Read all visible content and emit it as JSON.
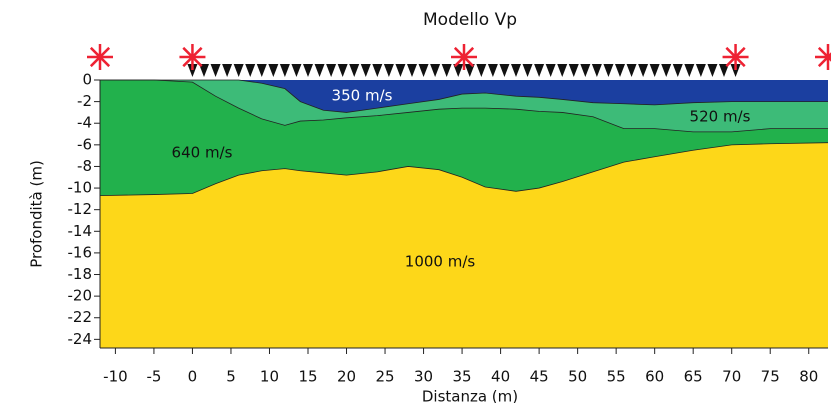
{
  "chart_data": {
    "type": "layers",
    "title": "Modello Vp",
    "x_label": "Distanza (m)",
    "y_label": "Profondità (m)",
    "xlim": [
      -12,
      82.5
    ],
    "ylim": [
      -24.8,
      0
    ],
    "xticks": [
      -10,
      -5,
      0,
      5,
      10,
      15,
      20,
      25,
      30,
      35,
      40,
      45,
      50,
      55,
      60,
      65,
      70,
      75,
      80
    ],
    "yticks": [
      0,
      -2,
      -4,
      -6,
      -8,
      -10,
      -12,
      -14,
      -16,
      -18,
      -20,
      -22,
      -24
    ],
    "x": [
      -12,
      -5,
      0,
      3,
      6,
      9,
      12,
      14,
      17,
      20,
      24,
      28,
      32,
      35,
      38,
      42,
      45,
      48,
      52,
      56,
      60,
      65,
      70,
      75,
      82.5
    ],
    "boundaries": [
      [
        0,
        0,
        0,
        0,
        0,
        -0.3,
        -0.8,
        -2,
        -2.8,
        -3,
        -2.6,
        -2.2,
        -1.8,
        -1.3,
        -1.2,
        -1.5,
        -1.6,
        -1.8,
        -2.1,
        -2.2,
        -2.3,
        -2.1,
        -2,
        -2,
        -2
      ],
      [
        0,
        0,
        -0.2,
        -1.5,
        -2.6,
        -3.6,
        -4.2,
        -3.8,
        -3.7,
        -3.5,
        -3.3,
        -3,
        -2.7,
        -2.6,
        -2.6,
        -2.7,
        -2.9,
        -3,
        -3.4,
        -4.5,
        -4.5,
        -4.8,
        -4.8,
        -4.5,
        -4.5
      ],
      [
        -10.7,
        -10.6,
        -10.5,
        -9.6,
        -8.8,
        -8.4,
        -8.2,
        -8.4,
        -8.6,
        -8.8,
        -8.5,
        -8,
        -8.3,
        -9,
        -9.9,
        -10.3,
        -10,
        -9.4,
        -8.5,
        -7.6,
        -7.1,
        -6.5,
        -6,
        -5.9,
        -5.8
      ]
    ],
    "layers": [
      {
        "label": "350 m/s",
        "color": "#1b3fa0"
      },
      {
        "label": "520 m/s",
        "color": "#3dbb78"
      },
      {
        "label": "640 m/s",
        "color": "#22b14c"
      },
      {
        "label": "1000 m/s",
        "color": "#fdd719"
      }
    ],
    "shots": [
      -12,
      0,
      35.25,
      70.5,
      82.5
    ],
    "shot_color": "#ee2233",
    "geophones": [
      0,
      1.5,
      3,
      4.5,
      6,
      7.5,
      9,
      10.5,
      12,
      13.5,
      15,
      16.5,
      18,
      19.5,
      21,
      22.5,
      24,
      25.5,
      27,
      28.5,
      30,
      31.5,
      33,
      34.5,
      36,
      37.5,
      39,
      40.5,
      42,
      43.5,
      45,
      46.5,
      48,
      49.5,
      51,
      52.5,
      54,
      55.5,
      57,
      58.5,
      60,
      61.5,
      63,
      64.5,
      66,
      67.5,
      69,
      70.5
    ],
    "geophone_color": "#111111"
  }
}
